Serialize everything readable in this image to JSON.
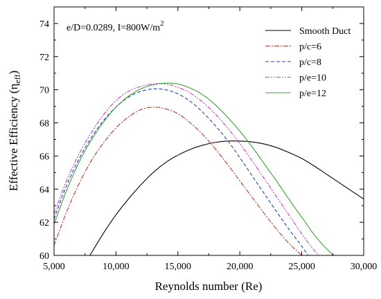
{
  "chart_data": {
    "type": "line",
    "annotation": "e/D=0.0289, I=800W/m",
    "annotation_sup": "2",
    "xlabel": "Reynolds number (Re)",
    "ylabel_main": "Effective Efficiency (η",
    "ylabel_sub": "eff",
    "ylabel_close": ")",
    "xlim": [
      5000,
      30000
    ],
    "ylim": [
      60,
      75
    ],
    "xticks": [
      5000,
      10000,
      15000,
      20000,
      25000,
      30000
    ],
    "xtick_labels": [
      "5,000",
      "10,000",
      "15,000",
      "20,000",
      "25,000",
      "30,000"
    ],
    "yticks": [
      60,
      62,
      64,
      66,
      68,
      70,
      72,
      74
    ],
    "ytick_labels": [
      "60",
      "62",
      "64",
      "66",
      "68",
      "70",
      "72",
      "74"
    ],
    "legend_position": "top-right",
    "grid": false,
    "series": [
      {
        "name": "Smooth Duct",
        "color": "#000000",
        "dash": "",
        "x": [
          7900,
          9000,
          10000,
          11000,
          12000,
          13000,
          14000,
          15000,
          16000,
          17000,
          18000,
          19000,
          20000,
          21000,
          22000,
          23000,
          24000,
          25000,
          26000,
          27000,
          28000,
          29000,
          30000
        ],
        "y": [
          60.0,
          61.35,
          62.45,
          63.4,
          64.25,
          65.0,
          65.6,
          66.05,
          66.4,
          66.65,
          66.82,
          66.9,
          66.9,
          66.85,
          66.72,
          66.5,
          66.2,
          65.85,
          65.4,
          64.9,
          64.4,
          63.9,
          63.4
        ]
      },
      {
        "name": "p/c=6",
        "color": "#c0392b",
        "dash": "7,2,2,2",
        "x": [
          5000,
          6000,
          7000,
          8000,
          9000,
          10000,
          11000,
          12000,
          13000,
          14000,
          15000,
          16000,
          17000,
          18000,
          19000,
          20000,
          21000,
          22000,
          23000,
          24000,
          25000
        ],
        "y": [
          60.6,
          62.6,
          64.3,
          65.7,
          66.8,
          67.7,
          68.35,
          68.8,
          68.95,
          68.85,
          68.55,
          68.0,
          67.3,
          66.45,
          65.5,
          64.5,
          63.5,
          62.5,
          61.55,
          60.7,
          60.0
        ]
      },
      {
        "name": "p/c=8",
        "color": "#1f3fbf",
        "dash": "5,3",
        "x": [
          5000,
          6000,
          7000,
          8000,
          9000,
          10000,
          11000,
          12000,
          13000,
          14000,
          15000,
          16000,
          17000,
          18000,
          19000,
          20000,
          21000,
          22000,
          23000,
          24000,
          25000,
          25500
        ],
        "y": [
          62.2,
          64.2,
          65.8,
          67.1,
          68.15,
          68.95,
          69.55,
          69.9,
          70.05,
          70.0,
          69.75,
          69.3,
          68.65,
          67.85,
          66.95,
          65.9,
          64.8,
          63.7,
          62.6,
          61.55,
          60.55,
          60.0
        ]
      },
      {
        "name": "p/e=10",
        "color": "#cc33cc",
        "dash": "6,2,2,2,2,2",
        "x": [
          5000,
          6000,
          7000,
          8000,
          9000,
          10000,
          11000,
          12000,
          13000,
          14000,
          15000,
          16000,
          17000,
          18000,
          19000,
          20000,
          21000,
          22000,
          23000,
          24000,
          25000,
          26000,
          26400
        ],
        "y": [
          62.5,
          64.5,
          66.1,
          67.4,
          68.5,
          69.35,
          69.9,
          70.2,
          70.35,
          70.35,
          70.15,
          69.8,
          69.25,
          68.55,
          67.7,
          66.75,
          65.7,
          64.6,
          63.5,
          62.4,
          61.3,
          60.3,
          60.0
        ]
      },
      {
        "name": "p/e=12",
        "color": "#3aa335",
        "dash": "",
        "x": [
          5000,
          6000,
          7000,
          8000,
          9000,
          10000,
          11000,
          12000,
          13000,
          14000,
          15000,
          16000,
          17000,
          18000,
          19000,
          20000,
          21000,
          22000,
          23000,
          24000,
          25000,
          26000,
          27000,
          27600
        ],
        "y": [
          61.9,
          63.9,
          65.6,
          66.95,
          68.05,
          68.95,
          69.6,
          70.05,
          70.3,
          70.4,
          70.35,
          70.1,
          69.7,
          69.1,
          68.35,
          67.5,
          66.55,
          65.5,
          64.45,
          63.35,
          62.3,
          61.25,
          60.4,
          60.0
        ]
      }
    ]
  }
}
